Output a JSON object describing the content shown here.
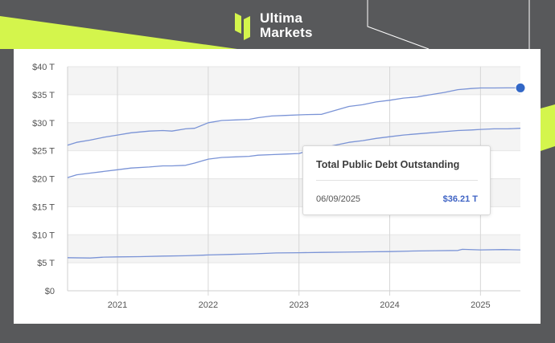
{
  "brand": {
    "line1": "Ultima",
    "line2": "Markets",
    "colors": {
      "accent": "#d4f54c",
      "background": "#58595b"
    }
  },
  "chart_data": {
    "type": "line",
    "title": "",
    "xlabel": "",
    "ylabel": "",
    "ylim": [
      0,
      40
    ],
    "xlim": [
      2020.45,
      2025.44
    ],
    "yticks": [
      0,
      5,
      10,
      15,
      20,
      25,
      30,
      35,
      40
    ],
    "ytick_labels": [
      "$0",
      "$5 T",
      "$10 T",
      "$15 T",
      "$20 T",
      "$25 T",
      "$30 T",
      "$35 T",
      "$40 T"
    ],
    "xticks": [
      2021,
      2022,
      2023,
      2024,
      2025
    ],
    "xtick_labels": [
      "2021",
      "2022",
      "2023",
      "2024",
      "2025"
    ],
    "grid": "horizontal alternating bands",
    "line_color": "#7a93d6",
    "marker_color": "#3267c6",
    "series": [
      {
        "x": [
          2020.45,
          2020.55,
          2020.7,
          2020.85,
          2021.0,
          2021.15,
          2021.35,
          2021.5,
          2021.6,
          2021.75,
          2021.85,
          2022.0,
          2022.15,
          2022.3,
          2022.45,
          2022.55,
          2022.7,
          2022.85,
          2023.0,
          2023.1,
          2023.25,
          2023.4,
          2023.55,
          2023.7,
          2023.85,
          2024.0,
          2024.15,
          2024.3,
          2024.45,
          2024.6,
          2024.75,
          2024.9,
          2025.0,
          2025.15,
          2025.3,
          2025.44
        ],
        "values": [
          26.0,
          26.5,
          26.9,
          27.4,
          27.8,
          28.2,
          28.5,
          28.6,
          28.5,
          28.9,
          29.0,
          30.0,
          30.4,
          30.5,
          30.6,
          30.9,
          31.2,
          31.3,
          31.4,
          31.45,
          31.5,
          32.2,
          32.9,
          33.2,
          33.7,
          34.0,
          34.4,
          34.6,
          35.0,
          35.4,
          35.9,
          36.1,
          36.2,
          36.2,
          36.21,
          36.21
        ]
      },
      {
        "x": [
          2020.45,
          2020.55,
          2020.7,
          2020.85,
          2021.0,
          2021.15,
          2021.35,
          2021.5,
          2021.6,
          2021.75,
          2021.85,
          2022.0,
          2022.15,
          2022.3,
          2022.45,
          2022.55,
          2022.7,
          2022.85,
          2023.0,
          2023.1,
          2023.25,
          2023.4,
          2023.55,
          2023.7,
          2023.85,
          2024.0,
          2024.15,
          2024.3,
          2024.45,
          2024.6,
          2024.75,
          2024.9,
          2025.0,
          2025.15,
          2025.3,
          2025.44
        ],
        "values": [
          20.2,
          20.7,
          21.0,
          21.3,
          21.6,
          21.9,
          22.1,
          22.3,
          22.3,
          22.4,
          22.8,
          23.5,
          23.8,
          23.9,
          24.0,
          24.2,
          24.3,
          24.4,
          24.5,
          25.0,
          25.5,
          26.0,
          26.5,
          26.8,
          27.2,
          27.5,
          27.8,
          28.0,
          28.2,
          28.4,
          28.6,
          28.7,
          28.8,
          28.9,
          28.9,
          29.0
        ]
      },
      {
        "x": [
          2020.45,
          2020.7,
          2020.85,
          2021.0,
          2021.25,
          2021.5,
          2021.75,
          2022.0,
          2022.25,
          2022.5,
          2022.75,
          2023.0,
          2023.25,
          2023.5,
          2023.75,
          2024.0,
          2024.25,
          2024.5,
          2024.75,
          2024.8,
          2025.0,
          2025.25,
          2025.44
        ],
        "values": [
          5.9,
          5.85,
          6.0,
          6.05,
          6.1,
          6.2,
          6.25,
          6.4,
          6.5,
          6.6,
          6.75,
          6.8,
          6.85,
          6.9,
          6.95,
          7.0,
          7.1,
          7.15,
          7.2,
          7.4,
          7.3,
          7.35,
          7.3
        ]
      }
    ],
    "highlight": {
      "series_index": 0,
      "x": 2025.44,
      "y": 36.21
    },
    "tooltip": {
      "title": "Total Public Debt Outstanding",
      "date": "06/09/2025",
      "value": "$36.21 T"
    }
  }
}
